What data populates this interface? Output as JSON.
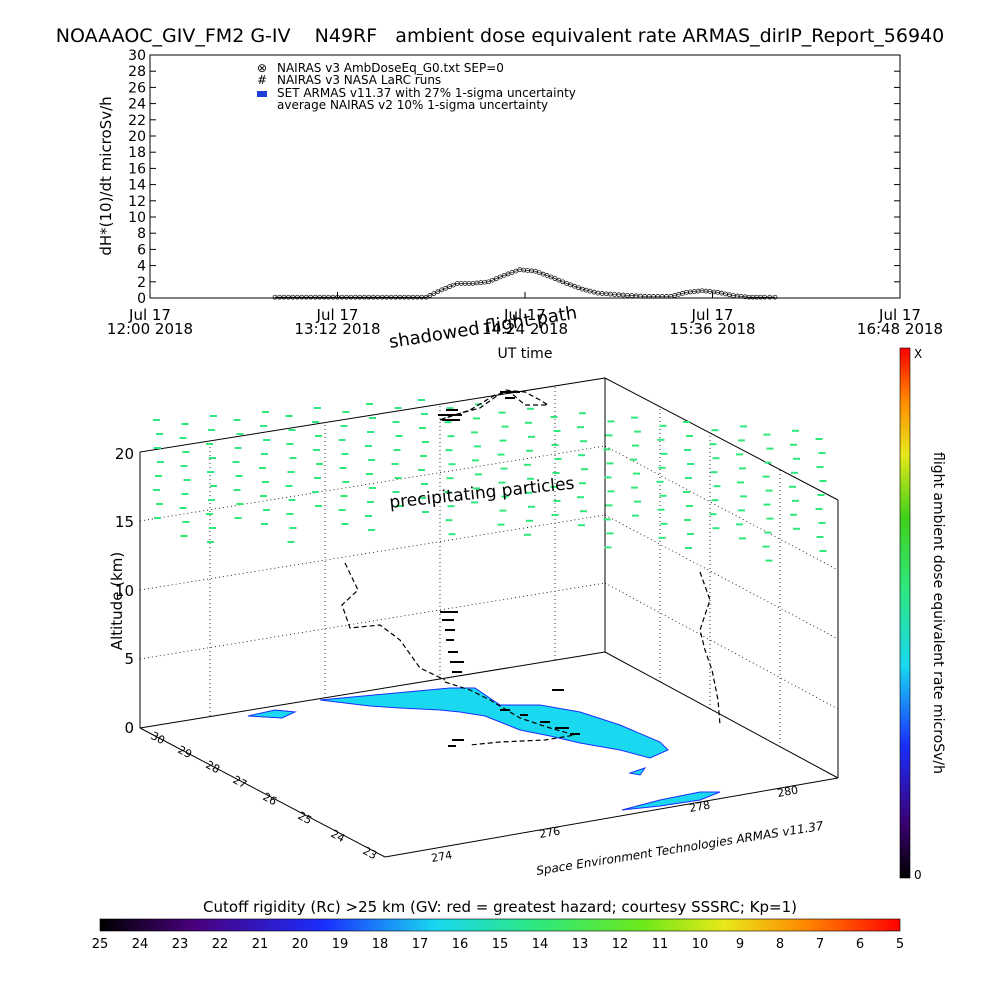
{
  "title": "NOAAAOC_GIV_FM2 G-IV    N49RF   ambient dose equivalent rate ARMAS_dirIP_Report_56940",
  "chart_data": [
    {
      "type": "line",
      "ylabel": "dH*(10)/dt microSv/h",
      "xlabel": "UT time",
      "ylim": [
        0,
        30
      ],
      "yticks": [
        "0",
        "2",
        "4",
        "6",
        "8",
        "10",
        "12",
        "14",
        "16",
        "18",
        "20",
        "22",
        "24",
        "26",
        "28",
        "30"
      ],
      "xlim": [
        "2018-07-17 12:00",
        "2018-07-17 16:48"
      ],
      "xticks": [
        {
          "date": "Jul 17",
          "time": "12:00",
          "year": "2018"
        },
        {
          "date": "Jul 17",
          "time": "13:12",
          "year": "2018"
        },
        {
          "date": "Jul 17",
          "time": "14:24",
          "year": "2018"
        },
        {
          "date": "Jul 17",
          "time": "15:36",
          "year": "2018"
        },
        {
          "date": "Jul 17",
          "time": "16:48",
          "year": "2018"
        }
      ],
      "legend": [
        {
          "symbol": "⊗",
          "label": "NAIRAS v3 AmbDoseEq_G0.txt SEP=0"
        },
        {
          "symbol": "#",
          "label": "NAIRAS v3 NASA LaRC runs"
        },
        {
          "symbol": "▬",
          "label": "SET ARMAS v11.37 with 27% 1-sigma uncertainty",
          "color": "#1f3fd6"
        },
        {
          "symbol": "",
          "label": "average NAIRAS v2 10% 1-sigma uncertainty"
        }
      ],
      "series": [
        {
          "name": "NAIRAS v3 AmbDoseEq_G0.txt SEP=0",
          "x": [
            "12:48",
            "13:00",
            "13:12",
            "13:24",
            "13:36",
            "13:46",
            "13:52",
            "13:58",
            "14:04",
            "14:10",
            "14:16",
            "14:22",
            "14:28",
            "14:34",
            "14:40",
            "14:46",
            "14:52",
            "15:00",
            "15:10",
            "15:20",
            "15:26",
            "15:32",
            "15:38",
            "15:44",
            "15:50",
            "15:56",
            "16:00"
          ],
          "y": [
            0.1,
            0.1,
            0.1,
            0.1,
            0.1,
            0.1,
            1.0,
            1.8,
            1.8,
            2.0,
            2.8,
            3.5,
            3.3,
            2.6,
            1.8,
            1.1,
            0.6,
            0.4,
            0.2,
            0.2,
            0.7,
            0.9,
            0.7,
            0.3,
            0.1,
            0.1,
            0.1
          ]
        }
      ]
    },
    {
      "type": "scatter",
      "subtype": "3d-flight-track",
      "zlabel": "Altitude (km)",
      "zticks": [
        "0",
        "5",
        "10",
        "15",
        "20"
      ],
      "lat_ticks": [
        "30",
        "29",
        "28",
        "27",
        "26",
        "25",
        "24",
        "23"
      ],
      "lon_ticks": [
        "274",
        "276",
        "278",
        "280"
      ],
      "annotations": [
        "shadowed flight path",
        "precipitating particles"
      ],
      "credit": "Space Environment Technologies ARMAS v11.37",
      "colorbar": {
        "label": "flight ambient dose equivalent rate microSv/h",
        "max_label": "X",
        "min_label": "0"
      }
    }
  ],
  "rigidity_bar": {
    "title": "Cutoff rigidity (Rc) >25 km (GV: red = greatest hazard; courtesy SSSRC; Kp=1)",
    "ticks": [
      "25",
      "24",
      "23",
      "22",
      "21",
      "20",
      "19",
      "18",
      "17",
      "16",
      "15",
      "14",
      "13",
      "12",
      "11",
      "10",
      "9",
      "8",
      "7",
      "6",
      "5"
    ]
  },
  "colors": {
    "particles": "#2ee87a",
    "land": "#19d8f0",
    "track": "#000000",
    "legend_armas": "#1f3fd6"
  }
}
